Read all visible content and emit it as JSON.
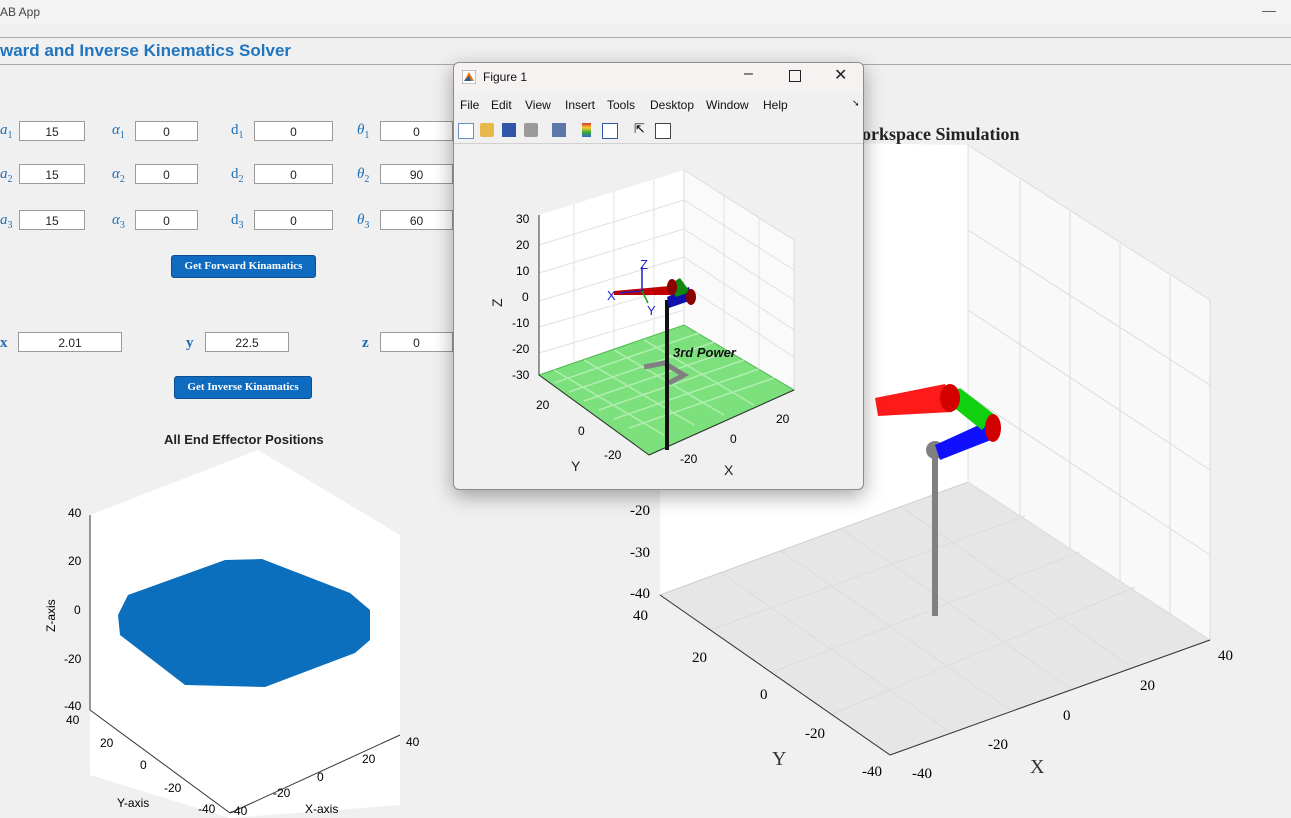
{
  "app": {
    "title": "AB App",
    "heading": "ward and Inverse Kinematics Solver"
  },
  "params": {
    "a": [
      "15",
      "15",
      "15"
    ],
    "alpha": [
      "0",
      "0",
      "0"
    ],
    "d": [
      "0",
      "0",
      "0"
    ],
    "theta": [
      "0",
      "90",
      "60"
    ]
  },
  "labels": {
    "a1": "a",
    "a2": "a",
    "a3": "a",
    "alpha": "α",
    "d": "d",
    "theta": "θ",
    "sub1": "1",
    "sub2": "2",
    "sub3": "3",
    "x": "x",
    "y": "y",
    "z": "z"
  },
  "buttons": {
    "forward": "Get Forward Kinamatics",
    "inverse": "Get Inverse Kinamatics"
  },
  "position": {
    "x": "2.01",
    "y": "22.5",
    "z": "0"
  },
  "figure": {
    "title": "Figure 1",
    "menu": [
      "File",
      "Edit",
      "View",
      "Insert",
      "Tools",
      "Desktop",
      "Window",
      "Help"
    ],
    "plot_label": "3rd Power",
    "z_ticks": [
      "30",
      "20",
      "10",
      "0",
      "-10",
      "-20",
      "-30"
    ],
    "y_ticks": [
      "20",
      "0",
      "-20"
    ],
    "x_ticks": [
      "-20",
      "0",
      "20"
    ],
    "xlabel": "X",
    "ylabel": "Y",
    "zlabel": "Z",
    "frame_x": "X",
    "frame_y": "Y",
    "frame_z": "Z"
  },
  "workspace": {
    "title": "orkspace Simulation",
    "z_ticks": [
      "-20",
      "-30",
      "-40"
    ],
    "y_ticks": [
      "40",
      "20",
      "0",
      "-20",
      "-40"
    ],
    "x_ticks": [
      "-40",
      "-20",
      "0",
      "20",
      "40"
    ],
    "xlabel": "X",
    "ylabel": "Y"
  },
  "endeffector": {
    "title": "All End Effector Positions",
    "z_ticks": [
      "40",
      "20",
      "0",
      "-20",
      "-40"
    ],
    "y_ticks": [
      "40",
      "20",
      "0",
      "-20",
      "-40"
    ],
    "x_ticks": [
      "-40",
      "-20",
      "0",
      "20",
      "40"
    ],
    "xlabel": "X-axis",
    "ylabel": "Y-axis",
    "zlabel": "Z-axis",
    "point_color": "#0b6fbd"
  }
}
